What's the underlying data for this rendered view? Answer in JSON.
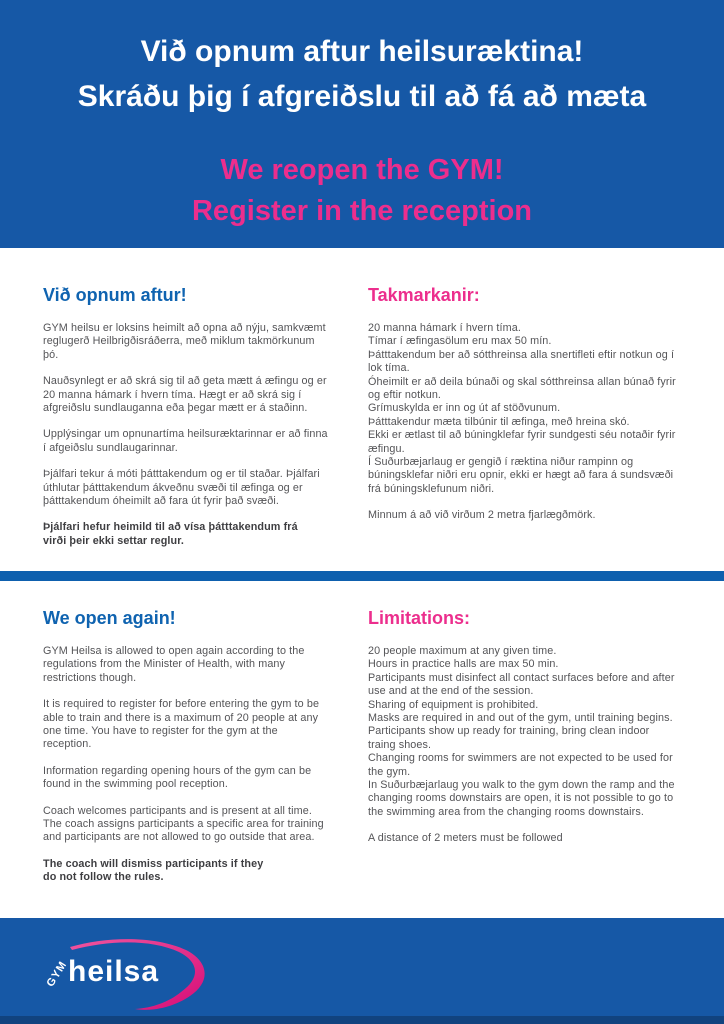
{
  "colors": {
    "blue": "#1658a6",
    "divider_blue": "#0e60ae",
    "heading_blue": "#0f63b0",
    "pink": "#ec2e8d",
    "body_text": "#545457",
    "bold_text": "#3e3e41",
    "white_text": "#ffffff",
    "footer_strip": "#11437f",
    "swoosh_start": "#f0559f",
    "swoosh_end": "#d60d77"
  },
  "banner": {
    "icelandic_lines": [
      "Við opnum aftur heilsuræktina!",
      "Skráðu þig í afgreiðslu til að fá að mæta"
    ],
    "english_lines": [
      "We reopen the GYM!",
      "Register in the reception"
    ]
  },
  "icelandic_section": {
    "left": {
      "heading": "Við opnum aftur!",
      "paragraphs": [
        "GYM heilsu er loksins heimilt að opna að nýju, samkvæmt reglugerð Heilbrigðisráðerra, með miklum takmörkunum þó.",
        "Nauðsynlegt er að skrá sig til að geta mætt á æfingu og er 20 manna hámark í hvern tíma. Hægt er að skrá sig í afgreiðslu sundlauganna eða þegar mætt er á staðinn.",
        "Upplýsingar um opnunartíma heilsuræktarinnar er að finna í afgeiðslu sundlaugarinnar.",
        "Þjálfari tekur á móti þátttakendum og er til staðar. Þjálfari úthlutar þátttakendum ákveðnu svæði til æfinga og er þátttakendum óheimilt að fara út fyrir það svæði."
      ],
      "bold_note": "Þjálfari hefur heimild til að vísa þátttakendum frá\nvirði þeir ekki settar reglur."
    },
    "right": {
      "heading": "Takmarkanir:",
      "rules": [
        "20 manna hámark í hvern tíma.",
        "Tímar í æfingasölum eru max 50 mín.",
        "Þátttakendum ber að sótthreinsa alla snertifleti eftir notkun og í lok tíma.",
        "Óheimilt er að deila búnaði og skal sótthreinsa allan búnað fyrir og eftir notkun.",
        "Grímuskylda er inn og út af stöðvunum.",
        "Þátttakendur mæta tilbúnir til æfinga, með hreina skó.",
        "Ekki er ætlast til að búningklefar fyrir sundgesti séu notaðir fyrir æfingu.",
        "Í Suðurbæjarlaug er gengið í ræktina niður rampinn og búningsklefar niðri eru opnir, ekki er hægt að fara á sundsvæði frá búningsklefunum niðri."
      ],
      "closing": "Minnum á að við virðum 2 metra fjarlægðmörk."
    }
  },
  "english_section": {
    "left": {
      "heading": "We open again!",
      "paragraphs": [
        "GYM Heilsa is allowed to open again according to the regulations from the Minister of Health, with many restrictions though.",
        "It is required to register for before entering the gym to be able to train and there is a maximum of 20 people at any one time. You have to register for the gym at the reception.",
        "Information regarding opening hours of the gym can be found in the swimming pool reception.",
        "Coach welcomes participants and is present at all time. The coach assigns participants a specific area for training and participants are not allowed to go outside that area."
      ],
      "bold_note": "The coach will dismiss participants if they\ndo not follow the rules."
    },
    "right": {
      "heading": "Limitations:",
      "rules": [
        "20 people maximum at any given time.",
        "Hours in practice halls are max 50 min.",
        "Participants must disinfect all contact surfaces before and after use and at the end of the session.",
        "Sharing of equipment is prohibited.",
        "Masks are required in and out of the gym, until training begins.",
        "Participants show up ready for training, bring clean indoor traing shoes.",
        "Changing rooms for swimmers are not expected to be used for the gym.",
        "In Suðurbæjarlaug you walk to the gym down the ramp and the changing rooms downstairs are open, it is not possible to go to the swimming area from the changing rooms downstairs."
      ],
      "closing": "A distance of 2 meters must be followed"
    }
  },
  "footer": {
    "logo_small": "GYM",
    "logo_text": "heilsa"
  }
}
